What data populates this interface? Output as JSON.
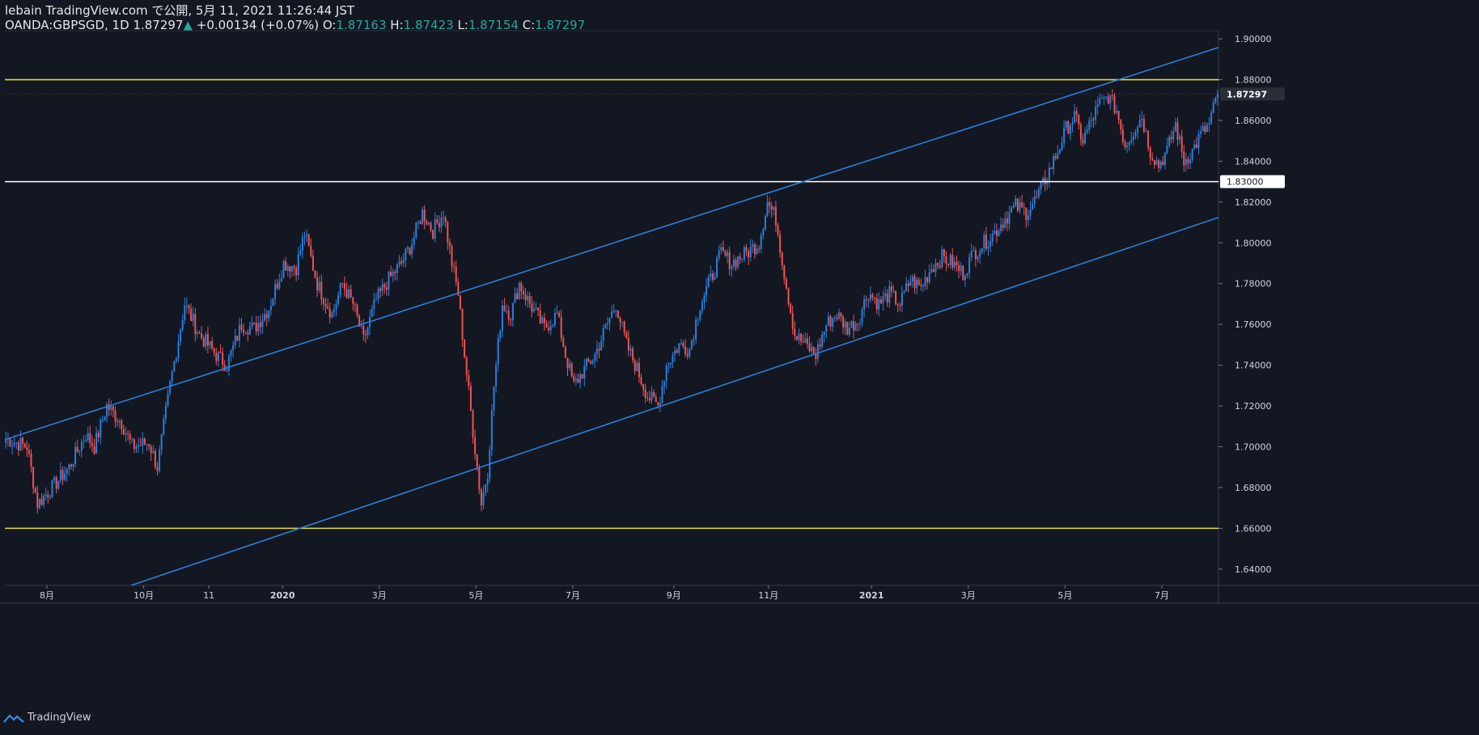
{
  "header": {
    "publish_line": "lebain TradingView.com で公開, 5月 11, 2021 11:26:44 JST",
    "symbol": "OANDA:GBPSGD, 1D",
    "last": "1.87297",
    "change": "+0.00134 (+0.07%)",
    "o_label": "O:",
    "o": "1.87163",
    "h_label": "H:",
    "h": "1.87423",
    "l_label": "L:",
    "l": "1.87154",
    "c_label": "C:",
    "c": "1.87297"
  },
  "footer": {
    "brand": "TradingView"
  },
  "colors": {
    "bg": "#131722",
    "up": "#2a7fdc",
    "down": "#ef5350",
    "channel": "#2a7fdc",
    "hline_yellow": "#e8d83a",
    "hline_white": "#ffffff"
  },
  "chart_data": {
    "type": "candlestick",
    "symbol": "OANDA:GBPSGD",
    "interval": "1D",
    "ylim": [
      1.632,
      1.904
    ],
    "y_ticks": [
      "1.64000",
      "1.66000",
      "1.68000",
      "1.70000",
      "1.72000",
      "1.74000",
      "1.76000",
      "1.78000",
      "1.80000",
      "1.82000",
      "1.84000",
      "1.86000",
      "1.88000",
      "1.90000"
    ],
    "x_ticks": [
      "8月",
      "10月",
      "11",
      "2020",
      "3月",
      "5月",
      "7月",
      "9月",
      "11月",
      "2021",
      "3月",
      "5月",
      "7月"
    ],
    "last_price_label": "1.87297",
    "price_label_white": "1.83000",
    "horizontal_lines": [
      {
        "price": 1.88,
        "color": "yellow"
      },
      {
        "price": 1.83,
        "color": "white"
      },
      {
        "price": 1.66,
        "color": "yellow"
      }
    ],
    "path_keypoints": [
      [
        0,
        1.704
      ],
      [
        10,
        1.7
      ],
      [
        15,
        1.672
      ],
      [
        22,
        1.68
      ],
      [
        30,
        1.69
      ],
      [
        38,
        1.706
      ],
      [
        42,
        1.7
      ],
      [
        48,
        1.72
      ],
      [
        55,
        1.712
      ],
      [
        60,
        1.7
      ],
      [
        68,
        1.702
      ],
      [
        72,
        1.69
      ],
      [
        78,
        1.73
      ],
      [
        85,
        1.77
      ],
      [
        92,
        1.755
      ],
      [
        100,
        1.745
      ],
      [
        105,
        1.74
      ],
      [
        112,
        1.76
      ],
      [
        118,
        1.758
      ],
      [
        125,
        1.768
      ],
      [
        132,
        1.79
      ],
      [
        138,
        1.788
      ],
      [
        142,
        1.805
      ],
      [
        148,
        1.78
      ],
      [
        155,
        1.765
      ],
      [
        160,
        1.78
      ],
      [
        165,
        1.77
      ],
      [
        170,
        1.752
      ],
      [
        176,
        1.772
      ],
      [
        182,
        1.782
      ],
      [
        188,
        1.79
      ],
      [
        193,
        1.8
      ],
      [
        198,
        1.815
      ],
      [
        203,
        1.806
      ],
      [
        208,
        1.815
      ],
      [
        212,
        1.79
      ],
      [
        215,
        1.775
      ],
      [
        218,
        1.745
      ],
      [
        222,
        1.708
      ],
      [
        226,
        1.672
      ],
      [
        229,
        1.688
      ],
      [
        232,
        1.73
      ],
      [
        236,
        1.77
      ],
      [
        240,
        1.765
      ],
      [
        244,
        1.78
      ],
      [
        248,
        1.772
      ],
      [
        252,
        1.765
      ],
      [
        256,
        1.758
      ],
      [
        262,
        1.765
      ],
      [
        266,
        1.745
      ],
      [
        270,
        1.73
      ],
      [
        275,
        1.738
      ],
      [
        280,
        1.745
      ],
      [
        285,
        1.758
      ],
      [
        290,
        1.77
      ],
      [
        295,
        1.75
      ],
      [
        300,
        1.738
      ],
      [
        305,
        1.725
      ],
      [
        310,
        1.72
      ],
      [
        314,
        1.74
      ],
      [
        320,
        1.75
      ],
      [
        325,
        1.748
      ],
      [
        330,
        1.77
      ],
      [
        335,
        1.782
      ],
      [
        340,
        1.795
      ],
      [
        345,
        1.79
      ],
      [
        352,
        1.795
      ],
      [
        358,
        1.8
      ],
      [
        362,
        1.82
      ],
      [
        366,
        1.812
      ],
      [
        370,
        1.785
      ],
      [
        375,
        1.755
      ],
      [
        380,
        1.75
      ],
      [
        385,
        1.745
      ],
      [
        390,
        1.76
      ],
      [
        395,
        1.765
      ],
      [
        400,
        1.758
      ],
      [
        405,
        1.762
      ],
      [
        410,
        1.776
      ],
      [
        415,
        1.77
      ],
      [
        420,
        1.775
      ],
      [
        425,
        1.77
      ],
      [
        430,
        1.782
      ],
      [
        435,
        1.778
      ],
      [
        440,
        1.788
      ],
      [
        445,
        1.793
      ],
      [
        450,
        1.79
      ],
      [
        455,
        1.785
      ],
      [
        460,
        1.795
      ],
      [
        465,
        1.8
      ],
      [
        470,
        1.805
      ],
      [
        475,
        1.812
      ],
      [
        480,
        1.818
      ],
      [
        485,
        1.815
      ],
      [
        490,
        1.822
      ],
      [
        495,
        1.833
      ],
      [
        500,
        1.845
      ],
      [
        504,
        1.856
      ],
      [
        508,
        1.862
      ],
      [
        512,
        1.85
      ],
      [
        516,
        1.86
      ],
      [
        520,
        1.868
      ],
      [
        524,
        1.872
      ],
      [
        528,
        1.865
      ],
      [
        532,
        1.848
      ],
      [
        536,
        1.855
      ],
      [
        540,
        1.862
      ],
      [
        544,
        1.845
      ],
      [
        548,
        1.838
      ],
      [
        552,
        1.845
      ],
      [
        556,
        1.858
      ],
      [
        560,
        1.84
      ],
      [
        564,
        1.845
      ],
      [
        568,
        1.853
      ],
      [
        572,
        1.858
      ],
      [
        576,
        1.873
      ]
    ],
    "channel_lines": [
      {
        "points": [
          [
            0,
            1.7035
          ],
          [
            600,
            1.9035
          ]
        ],
        "color": "channel"
      },
      {
        "points": [
          [
            60,
            1.632
          ],
          [
            600,
            1.8205
          ]
        ],
        "color": "channel"
      }
    ],
    "x_tick_positions": [
      20,
      66,
      97,
      132,
      178,
      224,
      270,
      318,
      363,
      412,
      458,
      504,
      550
    ]
  }
}
